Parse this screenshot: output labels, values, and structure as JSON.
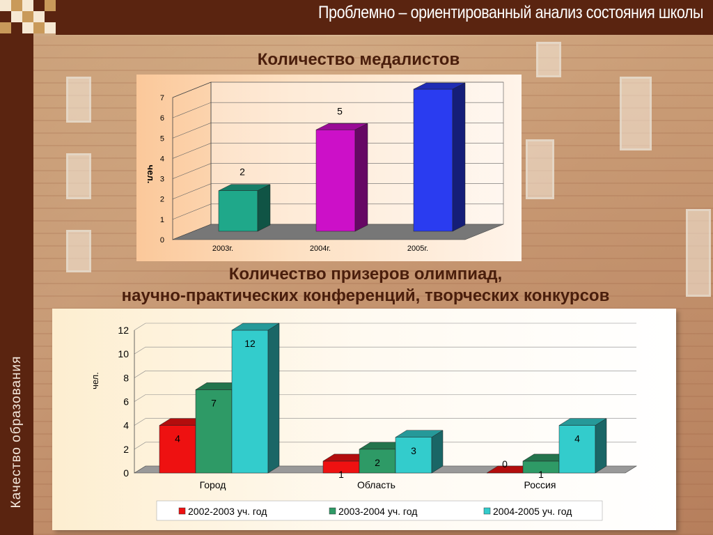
{
  "slide": {
    "title": "Проблемно – ориентированный анализ состояния школы",
    "sidebar_text": "Качество образования",
    "heading1": "Количество медалистов",
    "heading2_line1": "Количество призеров олимпиад,",
    "heading2_line2": "научно-практических конференций, творческих конкурсов"
  },
  "chart_data": [
    {
      "type": "bar",
      "title": "Количество медалистов",
      "ylabel": "чел.",
      "categories": [
        "2003г.",
        "2004г.",
        "2005г."
      ],
      "values": [
        2,
        5,
        7
      ],
      "ylim": [
        0,
        7
      ],
      "yticks": [
        0,
        1,
        2,
        3,
        4,
        5,
        6,
        7
      ],
      "colors": [
        "#1fa88a",
        "#cc10c8",
        "#2a3cf0"
      ],
      "grid": true
    },
    {
      "type": "bar",
      "title": "Количество призеров олимпиад, научно-практических конференций, творческих конкурсов",
      "ylabel": "чел.",
      "categories": [
        "Город",
        "Область",
        "Россия"
      ],
      "series": [
        {
          "name": "2002-2003 уч. год",
          "values": [
            4,
            1,
            0
          ],
          "color": "#ee1111"
        },
        {
          "name": "2003-2004 уч. год",
          "values": [
            7,
            2,
            1
          ],
          "color": "#2e9a66"
        },
        {
          "name": "2004-2005 уч. год",
          "values": [
            12,
            3,
            4
          ],
          "color": "#33cccc"
        }
      ],
      "ylim": [
        0,
        12
      ],
      "yticks": [
        0,
        2,
        4,
        6,
        8,
        10,
        12
      ],
      "legend": "bottom",
      "grid": true
    }
  ]
}
